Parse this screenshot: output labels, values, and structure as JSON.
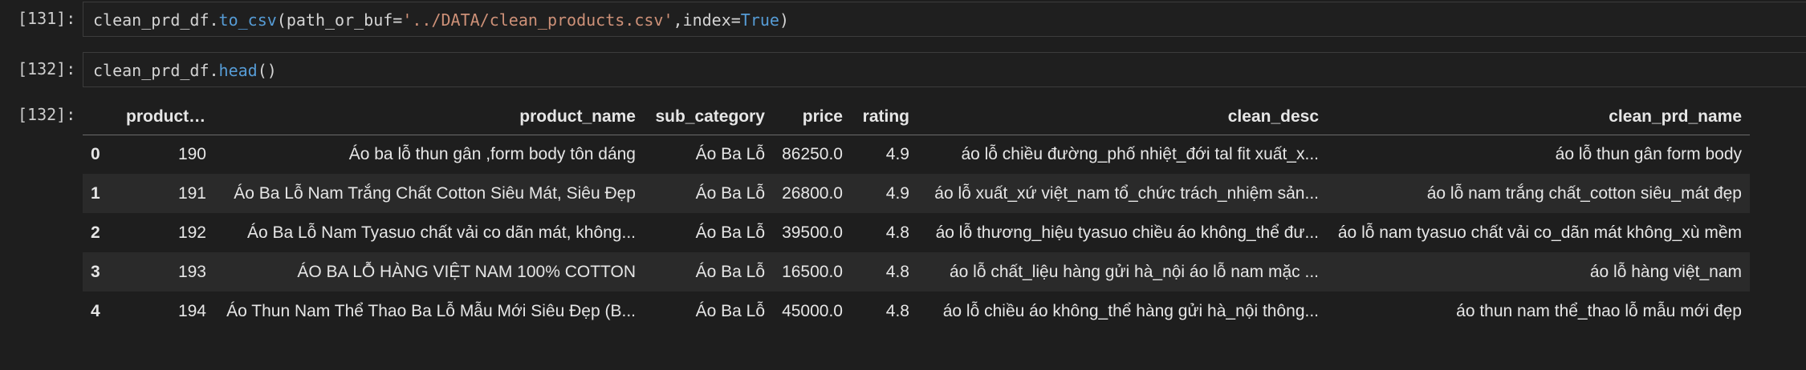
{
  "cells": [
    {
      "prompt": "[131]:",
      "code_tokens": [
        {
          "t": "clean_prd_df.",
          "c": "tok-op"
        },
        {
          "t": "to_csv",
          "c": "tok-fn"
        },
        {
          "t": "(path_or_buf",
          "c": "tok-op"
        },
        {
          "t": "=",
          "c": "tok-op"
        },
        {
          "t": "'../DATA/clean_products.csv'",
          "c": "tok-str"
        },
        {
          "t": ",index",
          "c": "tok-op"
        },
        {
          "t": "=",
          "c": "tok-op"
        },
        {
          "t": "True",
          "c": "tok-kw"
        },
        {
          "t": ")",
          "c": "tok-op"
        }
      ]
    },
    {
      "prompt": "[132]:",
      "code_tokens": [
        {
          "t": "clean_prd_df.",
          "c": "tok-op"
        },
        {
          "t": "head",
          "c": "tok-fn"
        },
        {
          "t": "()",
          "c": "tok-op"
        }
      ]
    }
  ],
  "output": {
    "prompt": "[132]:",
    "columns": [
      "",
      "product_id",
      "product_name",
      "sub_category",
      "price",
      "rating",
      "clean_desc",
      "clean_prd_name"
    ],
    "rows": [
      [
        "0",
        "190",
        "Áo ba lỗ thun gân ,form body tôn dáng",
        "Áo Ba Lỗ",
        "86250.0",
        "4.9",
        "áo lỗ chiều đường_phố nhiệt_đới tal fit xuất_x...",
        "áo lỗ thun gân form body"
      ],
      [
        "1",
        "191",
        "Áo Ba Lỗ Nam Trắng Chất Cotton Siêu Mát, Siêu Đẹp",
        "Áo Ba Lỗ",
        "26800.0",
        "4.9",
        "áo lỗ xuất_xứ việt_nam tổ_chức trách_nhiệm sản...",
        "áo lỗ nam trắng chất_cotton siêu_mát đẹp"
      ],
      [
        "2",
        "192",
        "Áo Ba Lỗ Nam Tyasuo chất vải co dãn mát, không...",
        "Áo Ba Lỗ",
        "39500.0",
        "4.8",
        "áo lỗ thương_hiệu tyasuo chiều áo không_thể đư...",
        "áo lỗ nam tyasuo chất vải co_dãn mát không_xù mềm"
      ],
      [
        "3",
        "193",
        "ÁO BA LỖ HÀNG VIỆT NAM 100% COTTON",
        "Áo Ba Lỗ",
        "16500.0",
        "4.8",
        "áo lỗ chất_liệu hàng gửi hà_nội áo lỗ nam mặc ...",
        "áo lỗ hàng việt_nam"
      ],
      [
        "4",
        "194",
        "Áo Thun Nam Thể Thao Ba Lỗ Mẫu Mới Siêu Đẹp (B...",
        "Áo Ba Lỗ",
        "45000.0",
        "4.8",
        "áo lỗ chiều áo không_thể hàng gửi hà_nội thông...",
        "áo thun nam thể_thao lỗ mẫu mới đẹp"
      ]
    ]
  }
}
